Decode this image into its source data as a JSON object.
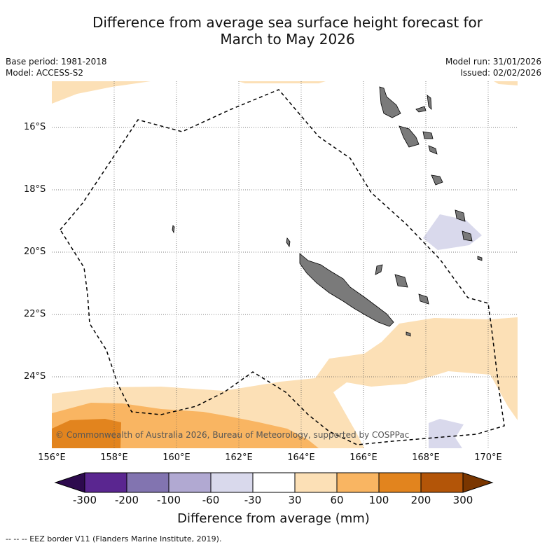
{
  "title_line1": "Difference from average sea surface height forecast for",
  "title_line2": "March to May 2026",
  "base_period": "Base period: 1981-2018",
  "model": "Model: ACCESS-S2",
  "model_run": "Model run: 31/01/2026",
  "issued": "Issued: 02/02/2026",
  "credit": "© Commonwealth of Australia 2026, Bureau of Meteorology, supported by COSPPac",
  "lon_labels": [
    "156°E",
    "158°E",
    "160°E",
    "162°E",
    "164°E",
    "166°E",
    "168°E",
    "170°E"
  ],
  "lat_labels": [
    "16°S",
    "18°S",
    "20°S",
    "22°S",
    "24°S"
  ],
  "colorbar": {
    "ticks": [
      "-300",
      "-200",
      "-100",
      "-60",
      "-30",
      "30",
      "60",
      "100",
      "200",
      "300"
    ],
    "title": "Difference from average (mm)",
    "colors": [
      "#2d0a4e",
      "#5a2690",
      "#8274b0",
      "#b1a9d2",
      "#d9d9ec",
      "#ffffff",
      "#fce0b6",
      "#f9b562",
      "#e2841e",
      "#b35508",
      "#7a3600"
    ]
  },
  "footer": "--  --  -- EEZ border V11 (Flanders Marine Institute, 2019)."
}
